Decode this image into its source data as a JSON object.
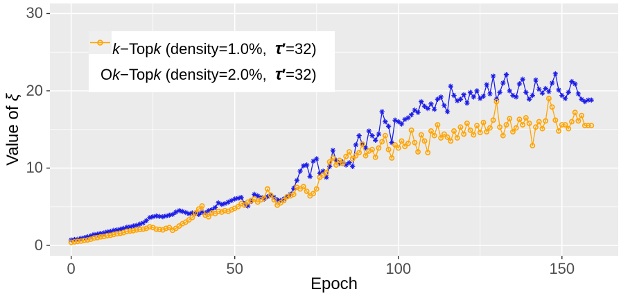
{
  "chart_data": {
    "type": "line",
    "title": "",
    "xlabel": "Epoch",
    "ylabel": "Value of ξ",
    "ylabel_parts": [
      {
        "t": "Value of "
      },
      {
        "t": "ξ",
        "style": "i"
      }
    ],
    "x_ticks": [
      0,
      50,
      100,
      150
    ],
    "y_ticks": [
      0,
      10,
      20,
      30
    ],
    "x_minor_ticks": [
      25,
      75,
      125
    ],
    "y_minor_ticks": [
      5,
      15,
      25
    ],
    "xlim": [
      -6.5,
      167.2
    ],
    "ylim": [
      -1.35,
      31.3
    ],
    "grid": true,
    "legend_position": "top-left-inset",
    "colors": {
      "panel_bg": "#EBEBEB",
      "grid": "#FFFFFF",
      "tick_mark": "#333333",
      "tick_label": "#4D4D4D",
      "series1": "#1C1CE8",
      "series2": "#FFA400",
      "legend_bg": "#FFFFFF",
      "legend_key_bg": "#EFEFEF"
    },
    "series": [
      {
        "name": "Ok−Topk (density=1.0%, τ′=32)",
        "color": "#1C1CE8",
        "marker": "asterisk",
        "epoch_start": 0,
        "values": [
          0.7,
          0.75,
          0.8,
          0.9,
          1.0,
          1.1,
          1.25,
          1.4,
          1.45,
          1.55,
          1.6,
          1.75,
          1.8,
          1.95,
          2.0,
          2.1,
          2.2,
          2.35,
          2.4,
          2.5,
          2.6,
          2.75,
          2.9,
          3.2,
          3.6,
          3.7,
          3.8,
          3.75,
          3.7,
          3.8,
          3.9,
          4.0,
          4.3,
          4.5,
          4.4,
          4.25,
          4.1,
          4.2,
          4.1,
          4.0,
          4.3,
          4.2,
          4.5,
          4.6,
          4.9,
          5.5,
          5.3,
          5.4,
          5.6,
          5.8,
          6.0,
          6.1,
          6.2,
          5.4,
          5.1,
          5.7,
          6.6,
          6.4,
          6.2,
          6.0,
          6.3,
          6.5,
          6.2,
          5.9,
          5.8,
          6.0,
          6.3,
          6.6,
          7.4,
          8.4,
          9.6,
          10.3,
          10.4,
          8.9,
          10.9,
          11.2,
          9.3,
          9.6,
          8.8,
          10.2,
          12.3,
          11.0,
          10.6,
          10.8,
          10.4,
          10.7,
          10.2,
          13.0,
          14.2,
          13.1,
          12.6,
          14.8,
          14.2,
          13.6,
          14.4,
          17.3,
          16.0,
          15.4,
          13.3,
          16.2,
          16.0,
          15.7,
          16.3,
          16.5,
          16.9,
          17.5,
          17.2,
          18.6,
          18.0,
          17.7,
          18.3,
          17.6,
          18.9,
          19.2,
          18.1,
          17.3,
          20.6,
          19.4,
          18.7,
          18.9,
          19.5,
          18.4,
          19.8,
          19.2,
          20.0,
          19.0,
          19.3,
          20.8,
          19.6,
          21.9,
          18.9,
          19.8,
          21.0,
          22.1,
          20.0,
          19.4,
          19.2,
          20.9,
          21.5,
          19.8,
          18.9,
          19.4,
          21.4,
          20.2,
          19.7,
          20.3,
          19.9,
          21.0,
          22.2,
          20.1,
          19.4,
          19.0,
          19.8,
          21.2,
          20.9,
          19.6,
          18.9,
          18.6,
          18.8,
          18.8
        ]
      },
      {
        "name": "Ok−Topk (density=2.0%, τ′=32)",
        "color": "#FFA400",
        "marker": "circle",
        "epoch_start": 0,
        "values": [
          0.4,
          0.45,
          0.5,
          0.55,
          0.65,
          0.7,
          0.8,
          0.95,
          1.0,
          1.1,
          1.15,
          1.25,
          1.3,
          1.4,
          1.5,
          1.55,
          1.65,
          1.8,
          1.85,
          1.9,
          2.0,
          2.05,
          2.1,
          2.2,
          2.4,
          2.3,
          2.1,
          2.05,
          2.0,
          2.2,
          2.3,
          1.95,
          2.2,
          2.5,
          2.8,
          3.0,
          3.3,
          3.6,
          4.2,
          4.7,
          5.1,
          3.9,
          3.7,
          4.2,
          4.1,
          4.4,
          4.3,
          4.5,
          4.4,
          4.6,
          4.8,
          5.0,
          5.4,
          5.2,
          5.6,
          5.8,
          6.0,
          5.6,
          5.9,
          6.1,
          7.3,
          6.5,
          5.9,
          5.2,
          5.5,
          5.8,
          6.3,
          6.4,
          6.6,
          7.5,
          7.3,
          7.6,
          7.0,
          6.4,
          6.7,
          7.3,
          8.8,
          9.1,
          9.4,
          10.8,
          11.3,
          10.4,
          11.0,
          10.6,
          11.5,
          12.1,
          11.2,
          11.6,
          12.0,
          13.1,
          11.6,
          12.2,
          12.4,
          11.4,
          12.6,
          13.4,
          14.2,
          12.4,
          11.3,
          13.0,
          12.6,
          13.5,
          12.8,
          13.2,
          14.9,
          13.3,
          12.1,
          14.3,
          13.5,
          12.0,
          14.8,
          14.2,
          15.6,
          13.9,
          14.4,
          14.0,
          13.5,
          14.8,
          13.9,
          15.3,
          14.4,
          15.8,
          14.9,
          14.3,
          15.5,
          14.6,
          15.9,
          14.7,
          15.2,
          16.2,
          18.6,
          15.3,
          14.2,
          15.6,
          16.4,
          14.7,
          15.2,
          16.3,
          15.6,
          16.5,
          15.8,
          12.9,
          15.3,
          16.0,
          15.1,
          16.1,
          19.0,
          17.9,
          16.2,
          14.8,
          15.6,
          15.6,
          15.1,
          16.0,
          17.2,
          16.1,
          16.8,
          15.5,
          15.5,
          15.5
        ]
      }
    ],
    "legend": {
      "entries": [
        {
          "label": "Ok−Topk (density=1.0%, τ′=32)",
          "parts": [
            {
              "t": "O"
            },
            {
              "t": "k",
              "style": "i"
            },
            {
              "t": "−Top"
            },
            {
              "t": "k",
              "style": "i"
            },
            {
              "t": " (density=1.0%,  "
            },
            {
              "t": "τ",
              "style": "tau"
            },
            {
              "t": "′",
              "style": "prime"
            },
            {
              "t": "=32)"
            }
          ]
        },
        {
          "label": "Ok−Topk (density=2.0%, τ′=32)",
          "parts": [
            {
              "t": "O"
            },
            {
              "t": "k",
              "style": "i"
            },
            {
              "t": "−Top"
            },
            {
              "t": "k",
              "style": "i"
            },
            {
              "t": " (density=2.0%,  "
            },
            {
              "t": "τ",
              "style": "tau"
            },
            {
              "t": "′",
              "style": "prime"
            },
            {
              "t": "=32)"
            }
          ]
        }
      ]
    }
  }
}
